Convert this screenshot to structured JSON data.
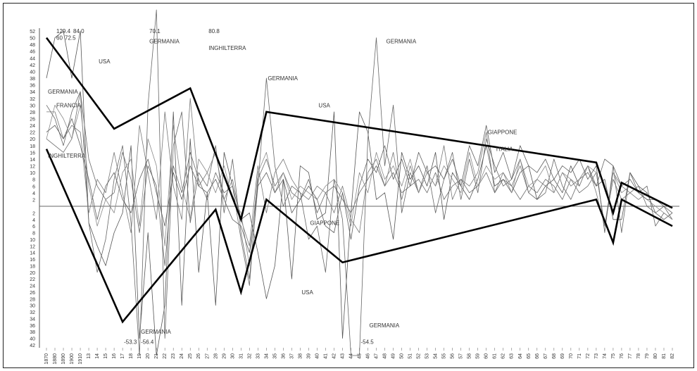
{
  "chart_data": {
    "type": "line",
    "title": "",
    "xlabel": "",
    "ylabel": "",
    "ylim": [
      -42,
      52
    ],
    "grid": false,
    "zero_line": true,
    "x_ticks": [
      "1870",
      "1880",
      "1890",
      "1900",
      "1910",
      "13",
      "14",
      "15",
      "16",
      "17",
      "18",
      "19",
      "20",
      "21",
      "22",
      "23",
      "24",
      "25",
      "26",
      "27",
      "28",
      "29",
      "30",
      "31",
      "32",
      "33",
      "34",
      "35",
      "36",
      "37",
      "38",
      "39",
      "40",
      "41",
      "42",
      "43",
      "44",
      "45",
      "46",
      "47",
      "48",
      "49",
      "50",
      "51",
      "52",
      "53",
      "54",
      "55",
      "56",
      "57",
      "58",
      "59",
      "60",
      "61",
      "62",
      "63",
      "64",
      "65",
      "66",
      "67",
      "68",
      "69",
      "70",
      "71",
      "72",
      "73",
      "74",
      "75",
      "76",
      "77",
      "78",
      "79",
      "80",
      "81",
      "82"
    ],
    "y_ticks_upper": [
      52,
      50,
      48,
      46,
      44,
      42,
      40,
      38,
      36,
      34,
      32,
      30,
      28,
      26,
      24,
      22,
      20,
      18,
      16,
      14,
      12,
      10,
      8,
      6,
      4,
      2
    ],
    "y_ticks_lower": [
      2,
      4,
      6,
      8,
      10,
      12,
      14,
      16,
      18,
      20,
      22,
      24,
      26,
      28,
      30,
      32,
      34,
      36,
      38,
      40,
      42
    ],
    "envelope_upper": [
      {
        "x": "1870",
        "y": 50
      },
      {
        "x": "16",
        "y": 23
      },
      {
        "x": "25",
        "y": 35
      },
      {
        "x": "31",
        "y": -4
      },
      {
        "x": "34",
        "y": 28
      },
      {
        "x": "73",
        "y": 13
      },
      {
        "x": "75",
        "y": -2
      },
      {
        "x": "76",
        "y": 7
      },
      {
        "x": "82",
        "y": -0.5
      }
    ],
    "envelope_lower": [
      {
        "x": "1870",
        "y": 17
      },
      {
        "x": "17",
        "y": -35
      },
      {
        "x": "28",
        "y": -1
      },
      {
        "x": "31",
        "y": -26
      },
      {
        "x": "34",
        "y": 2
      },
      {
        "x": "43",
        "y": -17
      },
      {
        "x": "73",
        "y": 2
      },
      {
        "x": "75",
        "y": -11
      },
      {
        "x": "76",
        "y": 2
      },
      {
        "x": "82",
        "y": -6
      }
    ],
    "series": [
      {
        "name": "USA",
        "values": [
          38,
          50,
          52,
          38,
          52,
          -5,
          -12,
          -18,
          -8,
          -2,
          18,
          -40,
          -8,
          -60,
          -30,
          28,
          -30,
          20,
          -20,
          4,
          -30,
          16,
          6,
          -4,
          -2,
          -14,
          -28,
          -18,
          8,
          -22,
          12,
          10,
          -4,
          -2,
          28,
          -40,
          -2,
          28,
          22,
          2,
          4,
          -10,
          16,
          8,
          12,
          6,
          16,
          -4,
          10,
          6,
          2,
          8,
          18,
          6,
          8,
          4,
          10,
          12,
          2,
          6,
          8,
          4,
          12,
          6,
          12,
          6,
          8,
          -4,
          -4,
          10,
          6,
          4,
          -2,
          -4,
          -2
        ]
      },
      {
        "name": "GERMANIA",
        "values": [
          30,
          26,
          18,
          28,
          34,
          -5,
          -20,
          -10,
          8,
          18,
          -5,
          -58,
          30,
          70,
          -40,
          18,
          28,
          -5,
          10,
          6,
          18,
          -2,
          14,
          -8,
          -22,
          6,
          38,
          12,
          0,
          6,
          4,
          -10,
          -6,
          -20,
          8,
          -4,
          -56,
          -54,
          20,
          50,
          12,
          30,
          -2,
          10,
          4,
          12,
          -2,
          8,
          16,
          2,
          14,
          4,
          20,
          12,
          6,
          8,
          14,
          4,
          2,
          4,
          14,
          6,
          2,
          8,
          10,
          6,
          14,
          12,
          -8,
          10,
          4,
          6,
          -6,
          -2,
          -4
        ]
      },
      {
        "name": "FRANCIA",
        "values": [
          28,
          28,
          20,
          24,
          22,
          -2,
          8,
          4,
          16,
          4,
          -8,
          24,
          10,
          -4,
          28,
          6,
          -4,
          32,
          6,
          10,
          16,
          2,
          8,
          -4,
          -12,
          12,
          -2,
          10,
          14,
          8,
          4,
          2,
          6,
          4,
          -2,
          6,
          -4,
          -8,
          10,
          14,
          6,
          16,
          2,
          12,
          4,
          10,
          6,
          18,
          2,
          8,
          6,
          10,
          22,
          4,
          10,
          6,
          12,
          4,
          8,
          6,
          4,
          10,
          6,
          8,
          12,
          4,
          -6,
          10,
          6,
          4,
          2,
          4,
          -2,
          -4,
          -2
        ]
      },
      {
        "name": "INGHILTERRA",
        "values": [
          20,
          18,
          16,
          20,
          34,
          14,
          6,
          2,
          4,
          16,
          8,
          -8,
          12,
          6,
          -18,
          12,
          4,
          16,
          8,
          2,
          10,
          4,
          6,
          -10,
          -24,
          8,
          14,
          6,
          10,
          4,
          2,
          8,
          -2,
          4,
          6,
          2,
          -2,
          4,
          8,
          12,
          6,
          10,
          4,
          6,
          8,
          4,
          10,
          2,
          6,
          8,
          4,
          6,
          10,
          4,
          8,
          6,
          2,
          6,
          4,
          8,
          6,
          2,
          8,
          4,
          6,
          10,
          -6,
          8,
          2,
          4,
          6,
          0,
          -2,
          0,
          -4
        ]
      },
      {
        "name": "ITALIA",
        "values": [
          20,
          30,
          26,
          20,
          30,
          6,
          -6,
          2,
          -2,
          10,
          14,
          -6,
          20,
          12,
          -12,
          24,
          6,
          -4,
          14,
          10,
          4,
          12,
          2,
          -2,
          -18,
          10,
          16,
          4,
          10,
          2,
          6,
          4,
          2,
          6,
          8,
          4,
          -6,
          10,
          4,
          16,
          8,
          12,
          6,
          14,
          4,
          10,
          6,
          12,
          8,
          4,
          16,
          6,
          12,
          8,
          10,
          4,
          14,
          6,
          8,
          12,
          4,
          10,
          8,
          6,
          12,
          10,
          -6,
          10,
          4,
          6,
          4,
          2,
          0,
          -2,
          -4
        ]
      },
      {
        "name": "GIAPPONE",
        "values": [
          22,
          24,
          20,
          26,
          18,
          8,
          -4,
          6,
          10,
          2,
          -2,
          8,
          14,
          4,
          -6,
          10,
          2,
          12,
          6,
          4,
          8,
          2,
          -4,
          -6,
          -14,
          6,
          10,
          4,
          8,
          -2,
          2,
          6,
          2,
          -6,
          -8,
          4,
          -10,
          6,
          14,
          10,
          18,
          8,
          14,
          6,
          16,
          10,
          12,
          8,
          14,
          6,
          18,
          12,
          24,
          10,
          16,
          8,
          18,
          12,
          10,
          14,
          8,
          12,
          10,
          14,
          8,
          12,
          -8,
          12,
          6,
          8,
          4,
          2,
          2,
          0,
          -2
        ]
      }
    ],
    "annotations": [
      {
        "text": "129.4",
        "x": "1880",
        "y": 52
      },
      {
        "text": "60",
        "x": "1880",
        "y": 50
      },
      {
        "text": "72.5",
        "x": "1890",
        "y": 50
      },
      {
        "text": "84.0",
        "x": "1900",
        "y": 52
      },
      {
        "text": "70.1",
        "x": "20",
        "y": 52
      },
      {
        "text": "GERMANIA",
        "x": "20",
        "y": 49
      },
      {
        "text": "80.8",
        "x": "27",
        "y": 52
      },
      {
        "text": "INGHILTERRA",
        "x": "27",
        "y": 47
      },
      {
        "text": "USA",
        "x": "14",
        "y": 43
      },
      {
        "text": "GERMANIA",
        "x": "1870",
        "y": 34
      },
      {
        "text": "FRANCIA",
        "x": "1880",
        "y": 30
      },
      {
        "text": "INGHILTERRA",
        "x": "1870",
        "y": 15
      },
      {
        "text": "GERMANIA",
        "x": "34",
        "y": 38
      },
      {
        "text": "USA",
        "x": "40",
        "y": 30
      },
      {
        "text": "GERMANIA",
        "x": "48",
        "y": 49
      },
      {
        "text": "GIAPPONE",
        "x": "60",
        "y": 22
      },
      {
        "text": "ITALIA",
        "x": "61",
        "y": 17
      },
      {
        "text": "GIAPPONE",
        "x": "39",
        "y": -5
      },
      {
        "text": "USA",
        "x": "38",
        "y": -26
      },
      {
        "text": "-53.3",
        "x": "17",
        "y": -41
      },
      {
        "text": "GERMANIA",
        "x": "19",
        "y": -38
      },
      {
        "text": "-56.4",
        "x": "19",
        "y": -41
      },
      {
        "text": "-54.5",
        "x": "45",
        "y": -41
      },
      {
        "text": "GERMANIA",
        "x": "46",
        "y": -36
      }
    ]
  }
}
